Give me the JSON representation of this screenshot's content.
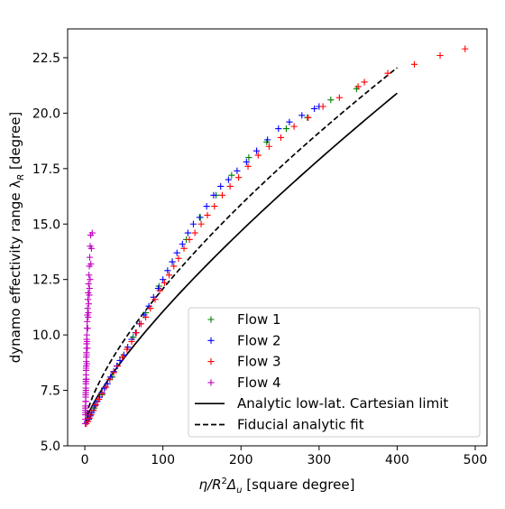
{
  "chart_data": {
    "type": "scatter",
    "title": "",
    "xlabel_main": "η/R",
    "xlabel_sup": "2",
    "xlabel_mid": "Δ",
    "xlabel_sub": "u",
    "xlabel_tail": " [square degree]",
    "ylabel_main": "dynamo effectivity range λ",
    "ylabel_sub": "R",
    "ylabel_tail": " [degree]",
    "xlim": [
      -22,
      515
    ],
    "ylim": [
      5.0,
      23.8
    ],
    "xticks": [
      0,
      100,
      200,
      300,
      400,
      500
    ],
    "yticks": [
      5.0,
      7.5,
      10.0,
      12.5,
      15.0,
      17.5,
      20.0,
      22.5
    ],
    "ytick_labels": [
      "5.0",
      "7.5",
      "10.0",
      "12.5",
      "15.0",
      "17.5",
      "20.0",
      "22.5"
    ],
    "grid": false,
    "legend_position": "lower-right",
    "series": [
      {
        "name": "Flow 1",
        "marker": "+",
        "color": "#008000",
        "points": [
          [
            12,
            6.7
          ],
          [
            22,
            7.3
          ],
          [
            35,
            8.1
          ],
          [
            48,
            9.0
          ],
          [
            62,
            9.9
          ],
          [
            78,
            11.0
          ],
          [
            95,
            12.2
          ],
          [
            112,
            13.3
          ],
          [
            130,
            14.3
          ],
          [
            148,
            15.3
          ],
          [
            168,
            16.3
          ],
          [
            188,
            17.2
          ],
          [
            210,
            18.0
          ],
          [
            233,
            18.7
          ],
          [
            258,
            19.3
          ],
          [
            285,
            19.8
          ],
          [
            315,
            20.6
          ],
          [
            348,
            21.1
          ]
        ]
      },
      {
        "name": "Flow 2",
        "marker": "+",
        "color": "#0000ff",
        "points": [
          [
            3,
            6.1
          ],
          [
            5,
            6.2
          ],
          [
            7,
            6.35
          ],
          [
            9,
            6.5
          ],
          [
            11,
            6.6
          ],
          [
            13,
            6.8
          ],
          [
            16,
            7.0
          ],
          [
            19,
            7.2
          ],
          [
            22,
            7.4
          ],
          [
            25,
            7.6
          ],
          [
            29,
            7.8
          ],
          [
            33,
            8.1
          ],
          [
            37,
            8.35
          ],
          [
            41,
            8.6
          ],
          [
            45,
            8.85
          ],
          [
            50,
            9.1
          ],
          [
            55,
            9.45
          ],
          [
            60,
            9.8
          ],
          [
            65,
            10.1
          ],
          [
            70,
            10.5
          ],
          [
            76,
            10.9
          ],
          [
            82,
            11.3
          ],
          [
            88,
            11.7
          ],
          [
            94,
            12.1
          ],
          [
            100,
            12.5
          ],
          [
            106,
            12.9
          ],
          [
            112,
            13.3
          ],
          [
            118,
            13.7
          ],
          [
            125,
            14.1
          ],
          [
            132,
            14.6
          ],
          [
            139,
            15.0
          ],
          [
            147,
            15.3
          ],
          [
            156,
            15.8
          ],
          [
            165,
            16.3
          ],
          [
            174,
            16.7
          ],
          [
            184,
            17.0
          ],
          [
            195,
            17.4
          ],
          [
            207,
            17.8
          ],
          [
            220,
            18.3
          ],
          [
            234,
            18.8
          ],
          [
            248,
            19.3
          ],
          [
            262,
            19.6
          ],
          [
            278,
            19.9
          ],
          [
            294,
            20.2
          ],
          [
            300,
            20.3
          ]
        ]
      },
      {
        "name": "Flow 3",
        "marker": "+",
        "color": "#ff0000",
        "points": [
          [
            2,
            6.0
          ],
          [
            4,
            6.1
          ],
          [
            6,
            6.25
          ],
          [
            8,
            6.4
          ],
          [
            11,
            6.6
          ],
          [
            14,
            6.85
          ],
          [
            18,
            7.1
          ],
          [
            22,
            7.35
          ],
          [
            27,
            7.65
          ],
          [
            32,
            8.0
          ],
          [
            37,
            8.3
          ],
          [
            42,
            8.6
          ],
          [
            48,
            9.0
          ],
          [
            54,
            9.35
          ],
          [
            60,
            9.7
          ],
          [
            66,
            10.1
          ],
          [
            72,
            10.5
          ],
          [
            78,
            10.8
          ],
          [
            84,
            11.2
          ],
          [
            90,
            11.6
          ],
          [
            96,
            12.0
          ],
          [
            102,
            12.35
          ],
          [
            108,
            12.7
          ],
          [
            114,
            13.1
          ],
          [
            120,
            13.45
          ],
          [
            127,
            13.9
          ],
          [
            134,
            14.3
          ],
          [
            141,
            14.6
          ],
          [
            149,
            15.0
          ],
          [
            157,
            15.4
          ],
          [
            166,
            15.8
          ],
          [
            176,
            16.3
          ],
          [
            186,
            16.7
          ],
          [
            197,
            17.1
          ],
          [
            209,
            17.6
          ],
          [
            222,
            18.1
          ],
          [
            236,
            18.5
          ],
          [
            251,
            18.9
          ],
          [
            268,
            19.4
          ],
          [
            286,
            19.8
          ],
          [
            305,
            20.3
          ],
          [
            326,
            20.7
          ],
          [
            350,
            21.2
          ],
          [
            358,
            21.4
          ],
          [
            388,
            21.8
          ],
          [
            422,
            22.2
          ],
          [
            455,
            22.6
          ],
          [
            487,
            22.9
          ]
        ]
      },
      {
        "name": "Flow 4",
        "marker": "+",
        "color": "#c000c0",
        "points": [
          [
            0.5,
            6.0
          ],
          [
            0.6,
            6.2
          ],
          [
            0.7,
            6.4
          ],
          [
            0.8,
            6.6
          ],
          [
            0.9,
            6.8
          ],
          [
            1.0,
            7.0
          ],
          [
            1.1,
            7.2
          ],
          [
            1.2,
            7.4
          ],
          [
            1.3,
            7.6
          ],
          [
            1.4,
            7.8
          ],
          [
            1.5,
            8.0
          ],
          [
            1.6,
            8.2
          ],
          [
            1.7,
            8.4
          ],
          [
            1.8,
            8.6
          ],
          [
            1.9,
            8.8
          ],
          [
            2.0,
            9.0
          ],
          [
            2.1,
            9.2
          ],
          [
            2.2,
            9.4
          ],
          [
            2.3,
            9.6
          ],
          [
            2.4,
            9.8
          ],
          [
            2.6,
            10.0
          ],
          [
            2.8,
            10.3
          ],
          [
            3.0,
            10.6
          ],
          [
            3.3,
            10.9
          ],
          [
            3.6,
            11.2
          ],
          [
            4.0,
            11.6
          ],
          [
            4.4,
            11.9
          ],
          [
            4.8,
            12.3
          ],
          [
            5.3,
            12.7
          ],
          [
            5.8,
            13.1
          ],
          [
            6.3,
            13.5
          ],
          [
            6.9,
            14.0
          ],
          [
            7.5,
            14.5
          ],
          [
            9.5,
            14.6
          ],
          [
            8.5,
            13.9
          ],
          [
            7.8,
            13.2
          ],
          [
            6.8,
            12.5
          ],
          [
            5.7,
            11.8
          ],
          [
            4.6,
            11.0
          ],
          [
            3.7,
            10.3
          ],
          [
            2.9,
            9.7
          ],
          [
            2.3,
            9.1
          ],
          [
            1.8,
            8.5
          ],
          [
            1.4,
            7.9
          ],
          [
            1.1,
            7.3
          ],
          [
            0.8,
            6.7
          ],
          [
            3.2,
            9.4
          ],
          [
            2.6,
            8.7
          ],
          [
            2.0,
            8.0
          ],
          [
            1.5,
            7.5
          ],
          [
            1.2,
            7.0
          ],
          [
            0.9,
            6.5
          ],
          [
            4.2,
            10.8
          ],
          [
            5.0,
            11.4
          ],
          [
            6.0,
            12.1
          ]
        ]
      }
    ],
    "lines": [
      {
        "name": "Analytic low-lat. Cartesian limit",
        "style": "solid",
        "color": "#000000",
        "x0": 0,
        "x1": 400,
        "y0": 6.0,
        "y1": 20.9,
        "power": 0.78
      },
      {
        "name": "Fiducial analytic fit",
        "style": "dashed",
        "color": "#000000",
        "x0": 0,
        "x1": 400,
        "y0": 6.0,
        "y1": 22.05,
        "power": 0.7
      }
    ]
  }
}
